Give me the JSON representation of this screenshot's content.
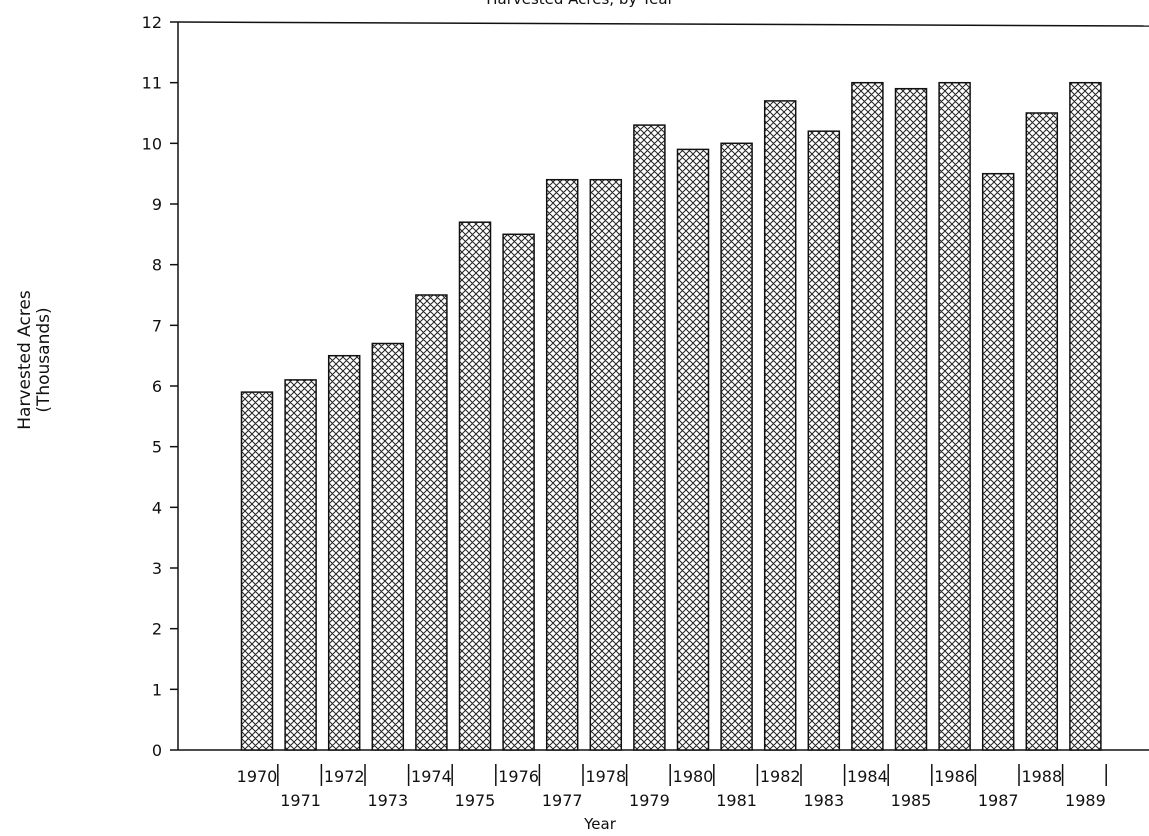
{
  "chart_data": {
    "type": "bar",
    "title": "Harvested Acres, by Year",
    "xlabel": "Year",
    "ylabel": "Harvested Acres",
    "ylabel_line2": "(Thousands)",
    "ylim": [
      0,
      12
    ],
    "yticks": [
      0,
      1,
      2,
      3,
      4,
      5,
      6,
      7,
      8,
      9,
      10,
      11,
      12
    ],
    "grid": false,
    "bar_fill": "crosshatch",
    "bar_color": "#222222",
    "categories": [
      "1970",
      "1971",
      "1972",
      "1973",
      "1974",
      "1975",
      "1976",
      "1977",
      "1978",
      "1979",
      "1980",
      "1981",
      "1982",
      "1983",
      "1984",
      "1985",
      "1986",
      "1987",
      "1988",
      "1989"
    ],
    "values": [
      5.9,
      6.1,
      6.5,
      6.7,
      7.5,
      8.7,
      8.5,
      9.4,
      9.4,
      10.3,
      9.9,
      10.0,
      10.7,
      10.2,
      11.0,
      10.9,
      11.0,
      9.5,
      10.5,
      11.0
    ]
  }
}
